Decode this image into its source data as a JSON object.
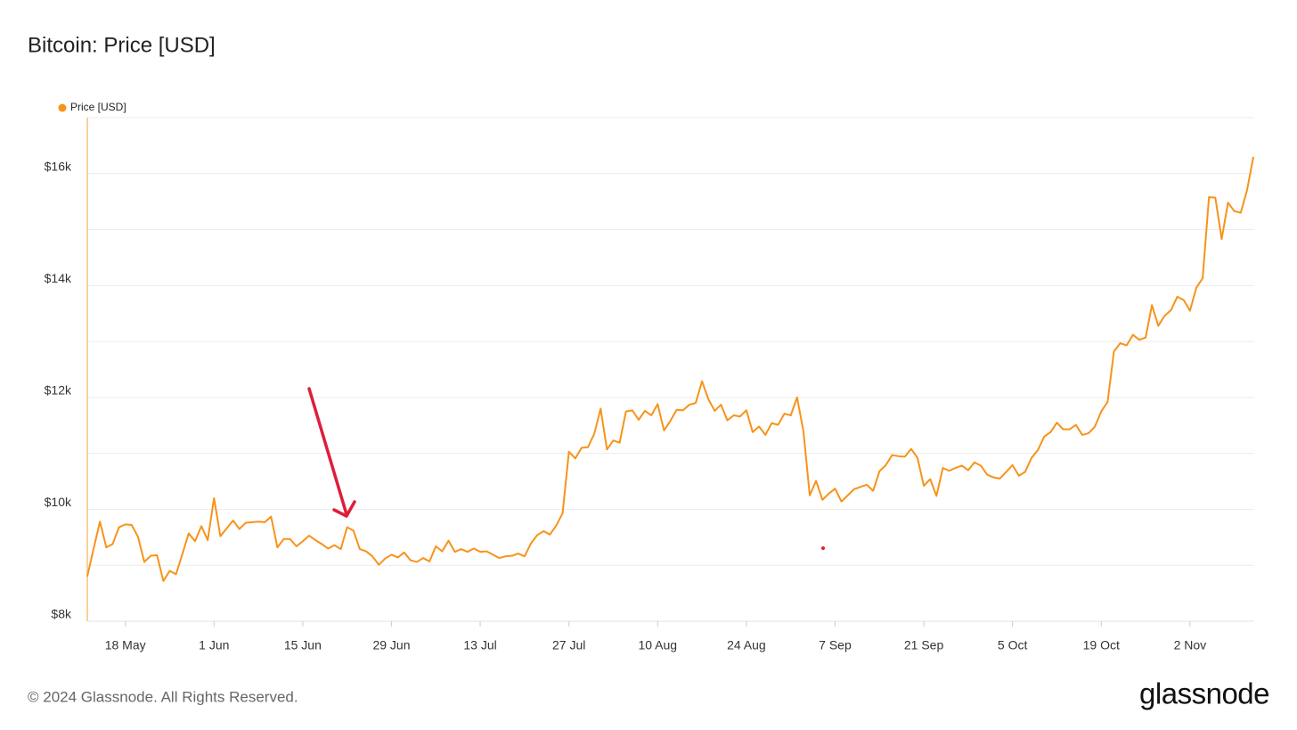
{
  "chart_data": {
    "type": "line",
    "title": "Bitcoin: Price [USD]",
    "categories": [
      null,
      null,
      null,
      null,
      null,
      null,
      "18 May",
      null,
      null,
      null,
      null,
      null,
      null,
      null,
      null,
      null,
      null,
      null,
      null,
      null,
      "1 Jun",
      null,
      null,
      null,
      null,
      null,
      null,
      null,
      null,
      null,
      null,
      null,
      null,
      null,
      "15 Jun",
      null,
      null,
      null,
      null,
      null,
      null,
      null,
      null,
      null,
      null,
      null,
      null,
      null,
      "29 Jun",
      null,
      null,
      null,
      null,
      null,
      null,
      null,
      null,
      null,
      null,
      null,
      null,
      null,
      "13 Jul",
      null,
      null,
      null,
      null,
      null,
      null,
      null,
      null,
      null,
      null,
      null,
      null,
      null,
      "27 Jul",
      null,
      null,
      null,
      null,
      null,
      null,
      null,
      null,
      null,
      null,
      null,
      null,
      null,
      "10 Aug",
      null,
      null,
      null,
      null,
      null,
      null,
      null,
      null,
      null,
      null,
      null,
      null,
      null,
      "24 Aug",
      null,
      null,
      null,
      null,
      null,
      null,
      null,
      null,
      null,
      null,
      null,
      null,
      null,
      "7 Sep",
      null,
      null,
      null,
      null,
      null,
      null,
      null,
      null,
      null,
      null,
      null,
      null,
      null,
      "21 Sep",
      null,
      null,
      null,
      null,
      null,
      null,
      null,
      null,
      null,
      null,
      null,
      null,
      null,
      "5 Oct",
      null,
      null,
      null,
      null,
      null,
      null,
      null,
      null,
      null,
      null,
      null,
      null,
      null,
      "19 Oct",
      null,
      null,
      null,
      null,
      null,
      null,
      null,
      null,
      null,
      null,
      null,
      null,
      null,
      "2 Nov",
      null,
      null,
      null,
      null,
      null,
      null,
      null,
      null,
      null,
      null
    ],
    "series": [
      {
        "name": "Price [USD]",
        "color": "#f7931a",
        "values": [
          8800,
          9300,
          9780,
          9320,
          9380,
          9680,
          9730,
          9720,
          9510,
          9060,
          9170,
          9180,
          8720,
          8900,
          8840,
          9200,
          9570,
          9430,
          9700,
          9450,
          10200,
          9520,
          9660,
          9800,
          9650,
          9760,
          9770,
          9780,
          9770,
          9870,
          9320,
          9470,
          9470,
          9340,
          9430,
          9530,
          9450,
          9380,
          9300,
          9360,
          9290,
          9680,
          9620,
          9290,
          9250,
          9160,
          9010,
          9120,
          9190,
          9140,
          9230,
          9090,
          9060,
          9130,
          9070,
          9340,
          9250,
          9440,
          9240,
          9290,
          9240,
          9300,
          9240,
          9250,
          9190,
          9130,
          9160,
          9170,
          9210,
          9160,
          9390,
          9540,
          9610,
          9550,
          9710,
          9930,
          11030,
          10910,
          11100,
          11110,
          11350,
          11800,
          11070,
          11230,
          11190,
          11750,
          11770,
          11600,
          11760,
          11680,
          11880,
          11410,
          11580,
          11780,
          11770,
          11870,
          11900,
          12290,
          11970,
          11760,
          11870,
          11590,
          11680,
          11660,
          11770,
          11380,
          11480,
          11330,
          11540,
          11510,
          11710,
          11680,
          12000,
          11400,
          10250,
          10510,
          10170,
          10280,
          10370,
          10140,
          10250,
          10360,
          10400,
          10440,
          10330,
          10680,
          10790,
          10970,
          10950,
          10940,
          11080,
          10920,
          10420,
          10540,
          10240,
          10740,
          10690,
          10740,
          10780,
          10700,
          10840,
          10780,
          10620,
          10570,
          10550,
          10670,
          10790,
          10600,
          10670,
          10920,
          11060,
          11300,
          11380,
          11550,
          11430,
          11430,
          11510,
          11330,
          11360,
          11480,
          11750,
          11920,
          12820,
          12970,
          12930,
          13120,
          13030,
          13070,
          13650,
          13280,
          13460,
          13560,
          13800,
          13740,
          13550,
          13960,
          14130,
          15580,
          15570,
          14830,
          15480,
          15330,
          15300,
          15700,
          16300
        ]
      }
    ],
    "ylim": [
      8000,
      17000
    ],
    "yticks": [
      {
        "value": 8000,
        "label": "$8k"
      },
      {
        "value": 10000,
        "label": "$10k"
      },
      {
        "value": 12000,
        "label": "$12k"
      },
      {
        "value": 14000,
        "label": "$14k"
      },
      {
        "value": 16000,
        "label": "$16k"
      }
    ],
    "minor_yticks": [
      9000,
      11000,
      13000,
      15000,
      17000
    ],
    "grid": true,
    "legend": "top-left"
  },
  "footer": {
    "copyright": "© 2024 Glassnode. All Rights Reserved.",
    "brand": "glassnode"
  }
}
